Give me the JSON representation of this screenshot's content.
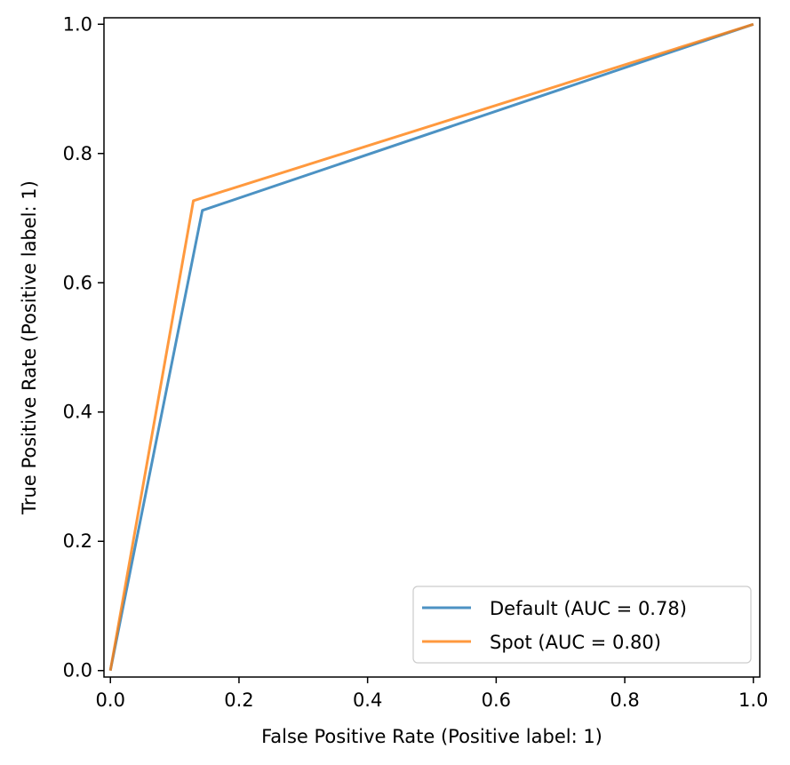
{
  "chart_data": {
    "type": "line",
    "title": "",
    "xlabel": "False Positive Rate (Positive label: 1)",
    "ylabel": "True Positive Rate (Positive label: 1)",
    "xlim": [
      -0.01,
      1.01
    ],
    "ylim": [
      -0.01,
      1.01
    ],
    "xticks": [
      0.0,
      0.2,
      0.4,
      0.6,
      0.8,
      1.0
    ],
    "xtick_labels": [
      "0.0",
      "0.2",
      "0.4",
      "0.6",
      "0.8",
      "1.0"
    ],
    "yticks": [
      0.0,
      0.2,
      0.4,
      0.6,
      0.8,
      1.0
    ],
    "ytick_labels": [
      "0.0",
      "0.2",
      "0.4",
      "0.6",
      "0.8",
      "1.0"
    ],
    "grid": false,
    "legend_position": "lower-right",
    "series": [
      {
        "name": "Default (AUC = 0.78)",
        "color": "#1f77b4",
        "x": [
          0.0,
          0.143,
          1.0
        ],
        "y": [
          0.0,
          0.712,
          1.0
        ]
      },
      {
        "name": "Spot (AUC = 0.80)",
        "color": "#ff7f0e",
        "x": [
          0.0,
          0.129,
          1.0
        ],
        "y": [
          0.0,
          0.727,
          1.0
        ]
      }
    ]
  }
}
